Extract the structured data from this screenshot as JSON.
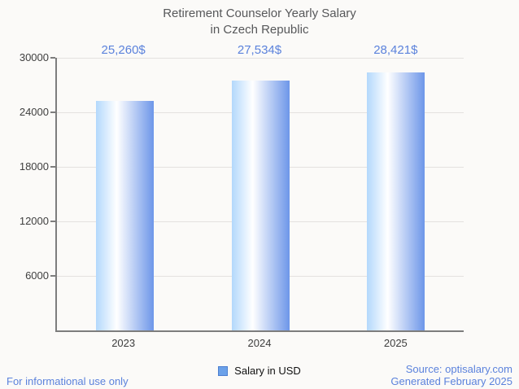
{
  "title": "Retirement Counselor Yearly Salary\nin Czech Republic",
  "legend": {
    "label": "Salary in USD",
    "swatch_color": "#6ba1e9"
  },
  "footer": {
    "disclaimer": "For informational use only",
    "source": "Source: optisalary.com",
    "generated": "Generated February 2025"
  },
  "colors": {
    "background": "#fbfaf8",
    "accent_text": "#5b82dc",
    "title_text": "#57585a",
    "axis": "#7d7d7d",
    "grid": "#e4e2df",
    "tick_text": "#3f3f3f",
    "bar_gradient": [
      "#b3d8fc",
      "#ffffff",
      "#6d96e9"
    ]
  },
  "chart_data": {
    "type": "bar",
    "title": "Retirement Counselor Yearly Salary in Czech Republic",
    "categories": [
      "2023",
      "2024",
      "2025"
    ],
    "values": [
      25260,
      27534,
      28421
    ],
    "value_labels": [
      "25,260$",
      "27,534$",
      "28,421$"
    ],
    "series_name": "Salary in USD",
    "xlabel": "",
    "ylabel": "",
    "ylim": [
      0,
      30000
    ],
    "yticks": [
      6000,
      12000,
      18000,
      24000,
      30000
    ],
    "grid": "horizontal",
    "legend_position": "bottom"
  }
}
